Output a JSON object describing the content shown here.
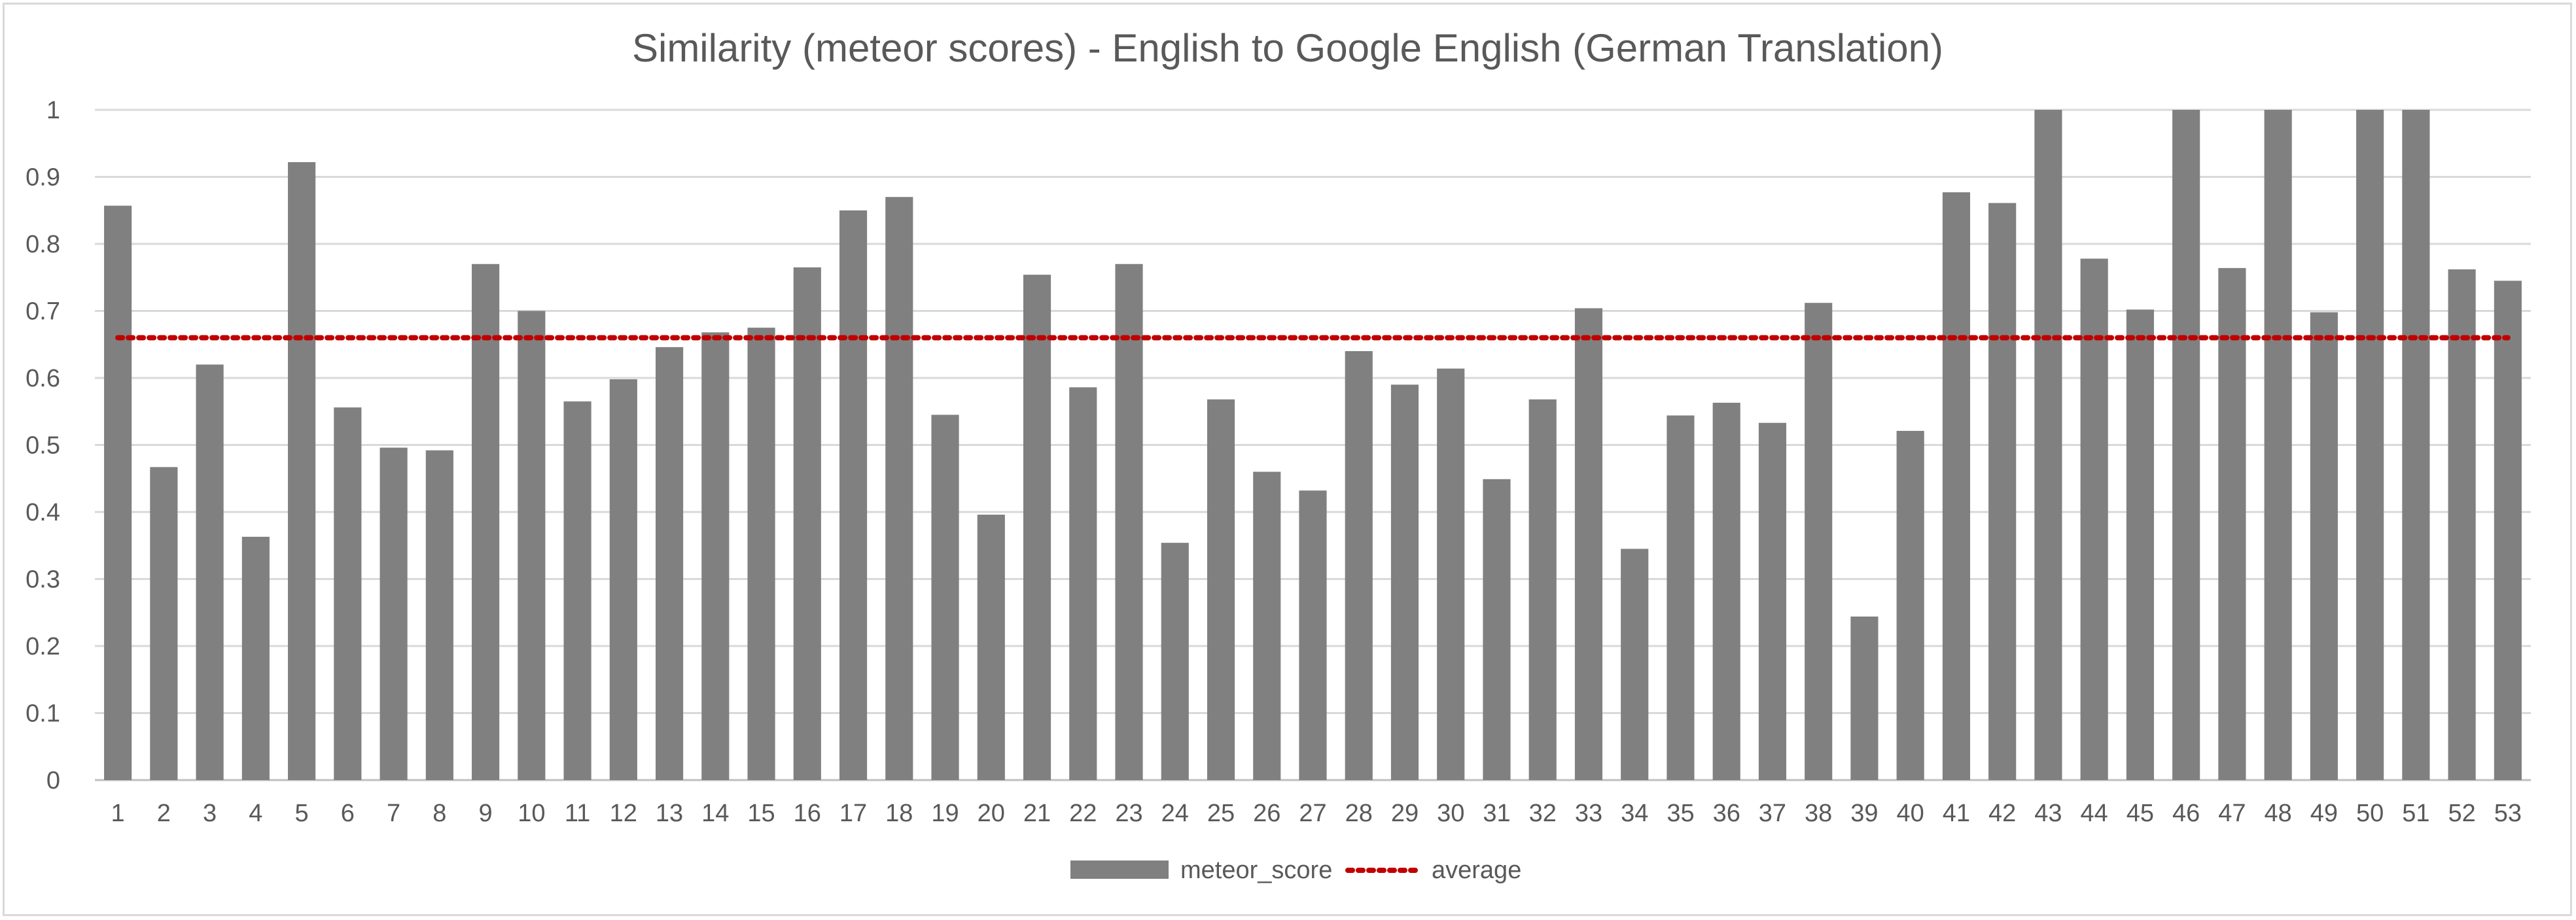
{
  "chart_data": {
    "type": "bar",
    "title": "Similarity (meteor scores) - English to Google English (German Translation)",
    "xlabel": "",
    "ylabel": "",
    "ylim": [
      0,
      1
    ],
    "yticks": [
      "0",
      "0.1",
      "0.2",
      "0.3",
      "0.4",
      "0.5",
      "0.6",
      "0.7",
      "0.8",
      "0.9",
      "1"
    ],
    "categories": [
      "1",
      "2",
      "3",
      "4",
      "5",
      "6",
      "7",
      "8",
      "9",
      "10",
      "11",
      "12",
      "13",
      "14",
      "15",
      "16",
      "17",
      "18",
      "19",
      "20",
      "21",
      "22",
      "23",
      "24",
      "25",
      "26",
      "27",
      "28",
      "29",
      "30",
      "31",
      "32",
      "33",
      "34",
      "35",
      "36",
      "37",
      "38",
      "39",
      "40",
      "41",
      "42",
      "43",
      "44",
      "45",
      "46",
      "47",
      "48",
      "49",
      "50",
      "51",
      "52",
      "53"
    ],
    "series": [
      {
        "name": "meteor_score",
        "kind": "bar",
        "color": "#808080",
        "values": [
          0.857,
          0.467,
          0.62,
          0.363,
          0.922,
          0.556,
          0.496,
          0.492,
          0.77,
          0.7,
          0.565,
          0.598,
          0.646,
          0.668,
          0.675,
          0.765,
          0.85,
          0.87,
          0.545,
          0.396,
          0.754,
          0.586,
          0.77,
          0.354,
          0.568,
          0.46,
          0.432,
          0.64,
          0.59,
          0.614,
          0.449,
          0.568,
          0.704,
          0.345,
          0.544,
          0.563,
          0.533,
          0.712,
          0.244,
          0.521,
          0.877,
          0.861,
          1.0,
          0.778,
          0.702,
          1.0,
          0.764,
          1.0,
          0.698,
          1.0,
          1.0,
          0.762,
          0.745
        ]
      },
      {
        "name": "average",
        "kind": "dotted-line",
        "color": "#c00000",
        "value": 0.66
      }
    ],
    "grid": true,
    "legend_position": "bottom"
  }
}
